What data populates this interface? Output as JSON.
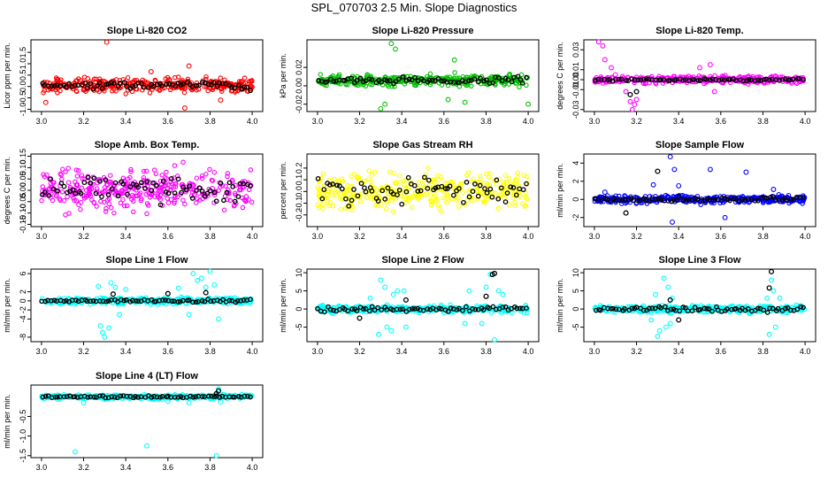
{
  "page": {
    "title": "SPL_070703  2.5 Min. Slope Diagnostics"
  },
  "chart_data": [
    {
      "type": "scatter",
      "title": "Slope Li-820 CO2",
      "ylabel": "Licor ppm per min.",
      "color": "#ff0000",
      "xlim": [
        2.95,
        4.05
      ],
      "ylim": [
        -1.1,
        2.05
      ],
      "xticks": [
        3.0,
        3.2,
        3.4,
        3.6,
        3.8,
        4.0
      ],
      "yticks": [
        -1.0,
        -0.5,
        0.0,
        0.5,
        1.0,
        1.5
      ],
      "ytick_labels": [
        "-1.0",
        "-0.5",
        "0.0",
        "0.5",
        "1.0",
        "1.5"
      ],
      "base": 0.05,
      "noise": 0.25,
      "black_noise": 0.14,
      "outliers": [
        [
          3.31,
          1.95
        ],
        [
          3.68,
          -0.95
        ],
        [
          3.7,
          0.9
        ],
        [
          3.52,
          0.65
        ],
        [
          3.02,
          -0.7
        ],
        [
          3.85,
          -0.6
        ]
      ],
      "black_outliers": []
    },
    {
      "type": "scatter",
      "title": "Slope Li-820 Pressure",
      "ylabel": "kPa per min.",
      "color": "#00c000",
      "xlim": [
        2.95,
        4.05
      ],
      "ylim": [
        -0.028,
        0.05
      ],
      "xticks": [
        3.0,
        3.2,
        3.4,
        3.6,
        3.8,
        4.0
      ],
      "yticks": [
        -0.02,
        0.0,
        0.02
      ],
      "ytick_labels": [
        "-0.02",
        "0.00",
        "0.02"
      ],
      "base": 0.006,
      "noise": 0.005,
      "black_noise": 0.003,
      "outliers": [
        [
          3.35,
          0.046
        ],
        [
          3.37,
          0.04
        ],
        [
          3.3,
          -0.025
        ],
        [
          3.32,
          -0.02
        ],
        [
          3.65,
          0.028
        ],
        [
          3.62,
          -0.015
        ],
        [
          3.7,
          -0.018
        ],
        [
          4.0,
          -0.02
        ]
      ],
      "black_outliers": []
    },
    {
      "type": "scatter",
      "title": "Slope Li-820 Temp.",
      "ylabel": "degrees C per min.",
      "color": "#ff00ff",
      "xlim": [
        2.95,
        4.05
      ],
      "ylim": [
        -0.032,
        0.04
      ],
      "xticks": [
        3.0,
        3.2,
        3.4,
        3.6,
        3.8,
        4.0
      ],
      "yticks": [
        -0.03,
        -0.01,
        0.0,
        0.01,
        0.03
      ],
      "ytick_labels": [
        "-0.03",
        "-0.01",
        "0.00",
        "0.01",
        "0.03"
      ],
      "base": 0.0,
      "noise": 0.003,
      "black_noise": 0.001,
      "outliers": [
        [
          3.02,
          0.038
        ],
        [
          3.04,
          0.034
        ],
        [
          3.05,
          0.02
        ],
        [
          3.08,
          0.012
        ],
        [
          3.15,
          -0.012
        ],
        [
          3.17,
          -0.022
        ],
        [
          3.18,
          -0.03
        ],
        [
          3.19,
          -0.025
        ],
        [
          3.2,
          -0.02
        ],
        [
          3.55,
          0.015
        ],
        [
          3.5,
          0.012
        ],
        [
          3.57,
          -0.012
        ],
        [
          3.1,
          0.005
        ]
      ],
      "black_outliers": [
        [
          3.17,
          -0.015
        ],
        [
          3.2,
          -0.012
        ]
      ]
    },
    {
      "type": "scatter",
      "title": "Slope Amb. Box Temp.",
      "ylabel": "degrees C per min.",
      "color": "#ff00ff",
      "xlim": [
        2.95,
        4.05
      ],
      "ylim": [
        -0.16,
        0.16
      ],
      "xticks": [
        3.0,
        3.2,
        3.4,
        3.6,
        3.8,
        4.0
      ],
      "yticks": [
        -0.15,
        -0.1,
        -0.05,
        0.0,
        0.05,
        0.1,
        0.15
      ],
      "ytick_labels": [
        "-0.15",
        "-0.10",
        "-0.05",
        "0.00",
        "0.05",
        "0.10",
        "0.15"
      ],
      "base": 0.0,
      "noise": 0.07,
      "black_noise": 0.045,
      "outliers": [],
      "black_outliers": []
    },
    {
      "type": "scatter",
      "title": "Slope Gas Stream RH",
      "ylabel": "percent per min.",
      "color": "#ffff00",
      "xlim": [
        2.95,
        4.05
      ],
      "ylim": [
        -0.3,
        0.32
      ],
      "xticks": [
        3.0,
        3.2,
        3.4,
        3.6,
        3.8,
        4.0
      ],
      "yticks": [
        -0.2,
        -0.1,
        0.0,
        0.1,
        0.2
      ],
      "ytick_labels": [
        "-0.2",
        "-0.1",
        "0.0",
        "0.1",
        "0.2"
      ],
      "base": 0.0,
      "noise": 0.12,
      "black_noise": 0.09,
      "outliers": [],
      "black_outliers": []
    },
    {
      "type": "scatter",
      "title": "Slope Sample Flow",
      "ylabel": "ml/min per min.",
      "color": "#0000ff",
      "xlim": [
        2.95,
        4.05
      ],
      "ylim": [
        -3.0,
        5.0
      ],
      "xticks": [
        3.0,
        3.2,
        3.4,
        3.6,
        3.8,
        4.0
      ],
      "yticks": [
        -2,
        0,
        2,
        4
      ],
      "ytick_labels": [
        "-2",
        "0",
        "2",
        "4"
      ],
      "base": 0.0,
      "noise": 0.35,
      "black_noise": 0.2,
      "outliers": [
        [
          3.36,
          4.7
        ],
        [
          3.38,
          3.3
        ],
        [
          3.37,
          -2.5
        ],
        [
          3.55,
          3.3
        ],
        [
          3.72,
          3.0
        ],
        [
          3.62,
          -2.0
        ],
        [
          3.28,
          1.6
        ],
        [
          3.4,
          1.5
        ],
        [
          3.85,
          1.1
        ],
        [
          3.05,
          0.8
        ]
      ],
      "black_outliers": [
        [
          3.3,
          3.1
        ],
        [
          3.15,
          -1.5
        ]
      ]
    },
    {
      "type": "scatter",
      "title": "Slope Line 1 Flow",
      "ylabel": "ml/min per min.",
      "color": "#00ffff",
      "xlim": [
        2.95,
        4.05
      ],
      "ylim": [
        -9.0,
        7.0
      ],
      "xticks": [
        3.0,
        3.2,
        3.4,
        3.6,
        3.8,
        4.0
      ],
      "yticks": [
        -8,
        -4,
        -2,
        0,
        2,
        6
      ],
      "ytick_labels": [
        "-8",
        "-4",
        "-2",
        "0",
        "2",
        "6"
      ],
      "base": 0.0,
      "noise": 0.55,
      "black_noise": 0.25,
      "outliers": [
        [
          3.3,
          -8
        ],
        [
          3.29,
          -7
        ],
        [
          3.33,
          4
        ],
        [
          3.28,
          -5.5
        ],
        [
          3.35,
          3
        ],
        [
          3.4,
          2.5
        ],
        [
          3.27,
          3.2
        ],
        [
          3.32,
          -6
        ],
        [
          3.37,
          -3
        ],
        [
          3.72,
          6
        ],
        [
          3.74,
          4.5
        ],
        [
          3.76,
          5
        ],
        [
          3.8,
          6.5
        ],
        [
          3.82,
          3.5
        ],
        [
          3.84,
          -4
        ],
        [
          3.7,
          -3
        ],
        [
          3.78,
          3
        ],
        [
          3.65,
          2.8
        ]
      ],
      "black_outliers": [
        [
          3.34,
          1.5
        ],
        [
          3.6,
          1.6
        ],
        [
          3.78,
          1.8
        ]
      ]
    },
    {
      "type": "scatter",
      "title": "Slope Line 2 Flow",
      "ylabel": "ml/min per min.",
      "color": "#00ffff",
      "xlim": [
        2.95,
        4.05
      ],
      "ylim": [
        -9.0,
        11.0
      ],
      "xticks": [
        3.0,
        3.2,
        3.4,
        3.6,
        3.8,
        4.0
      ],
      "yticks": [
        -5,
        0,
        5,
        10
      ],
      "ytick_labels": [
        "-5",
        "0",
        "5",
        "10"
      ],
      "base": 0.0,
      "noise": 0.8,
      "black_noise": 0.6,
      "outliers": [
        [
          3.29,
          -7
        ],
        [
          3.3,
          8
        ],
        [
          3.32,
          6
        ],
        [
          3.33,
          -5
        ],
        [
          3.36,
          4
        ],
        [
          3.35,
          -6
        ],
        [
          3.41,
          5
        ],
        [
          3.42,
          -5
        ],
        [
          3.38,
          5
        ],
        [
          3.82,
          9.5
        ],
        [
          3.84,
          -8.5
        ],
        [
          3.8,
          6
        ],
        [
          3.86,
          5
        ],
        [
          3.78,
          -4
        ],
        [
          3.88,
          4
        ],
        [
          3.72,
          5
        ],
        [
          3.7,
          -4
        ],
        [
          3.25,
          3
        ]
      ],
      "black_outliers": [
        [
          3.84,
          9.8
        ],
        [
          3.83,
          9.5
        ],
        [
          3.2,
          -2.5
        ],
        [
          3.42,
          2.5
        ],
        [
          3.8,
          3.5
        ]
      ]
    },
    {
      "type": "scatter",
      "title": "Slope Line 3 Flow",
      "ylabel": "ml/min per min.",
      "color": "#00ffff",
      "xlim": [
        2.95,
        4.05
      ],
      "ylim": [
        -9.0,
        11.0
      ],
      "xticks": [
        3.0,
        3.2,
        3.4,
        3.6,
        3.8,
        4.0
      ],
      "yticks": [
        -5,
        0,
        5,
        10
      ],
      "ytick_labels": [
        "-5",
        "0",
        "5",
        "10"
      ],
      "base": 0.0,
      "noise": 0.8,
      "black_noise": 0.6,
      "outliers": [
        [
          3.3,
          -7.5
        ],
        [
          3.31,
          -6
        ],
        [
          3.29,
          4
        ],
        [
          3.33,
          8.5
        ],
        [
          3.35,
          6
        ],
        [
          3.34,
          -5
        ],
        [
          3.37,
          3
        ],
        [
          3.36,
          -4
        ],
        [
          3.27,
          -3
        ],
        [
          3.84,
          8
        ],
        [
          3.83,
          -7
        ],
        [
          3.85,
          5
        ],
        [
          3.86,
          -5
        ],
        [
          3.82,
          3
        ],
        [
          3.88,
          3
        ]
      ],
      "black_outliers": [
        [
          3.84,
          10.3
        ],
        [
          3.83,
          5.8
        ],
        [
          3.4,
          -3
        ],
        [
          3.36,
          2.5
        ]
      ]
    },
    {
      "type": "scatter",
      "title": "Slope Line 4 (LT) Flow",
      "ylabel": "ml/min per min.",
      "color": "#00ffff",
      "xlim": [
        2.95,
        4.05
      ],
      "ylim": [
        -1.55,
        0.3
      ],
      "xticks": [
        3.0,
        3.2,
        3.4,
        3.6,
        3.8,
        4.0
      ],
      "yticks": [
        -1.5,
        -1.0,
        -0.5
      ],
      "ytick_labels": [
        "-1.5",
        "-1.0",
        "-0.5"
      ],
      "base": 0.0,
      "noise": 0.045,
      "black_noise": 0.02,
      "outliers": [
        [
          3.16,
          -1.4
        ],
        [
          3.5,
          -1.25
        ],
        [
          3.83,
          -1.5
        ],
        [
          3.84,
          0.2
        ],
        [
          3.2,
          -0.15
        ],
        [
          3.6,
          -0.12
        ],
        [
          3.7,
          -0.15
        ],
        [
          3.85,
          -0.13
        ]
      ],
      "black_outliers": [
        [
          3.84,
          0.15
        ],
        [
          3.83,
          0.08
        ]
      ]
    }
  ]
}
